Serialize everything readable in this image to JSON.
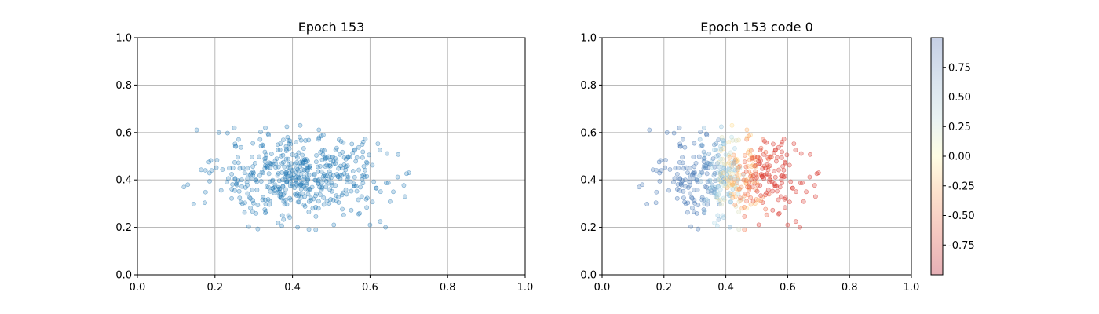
{
  "chart_data": [
    {
      "type": "scatter",
      "title": "Epoch 153",
      "xlabel": "",
      "ylabel": "",
      "xlim": [
        0,
        1
      ],
      "ylim": [
        0,
        1
      ],
      "xticks": [
        "0.0",
        "0.2",
        "0.4",
        "0.6",
        "0.8",
        "1.0"
      ],
      "yticks": [
        "0.0",
        "0.2",
        "0.4",
        "0.6",
        "0.8",
        "1.0"
      ],
      "grid": true,
      "point_color": "#1f77b4",
      "point_alpha": 0.25,
      "num_points": 500,
      "distribution": {
        "x_mean": 0.42,
        "x_std": 0.11,
        "x_range": [
          0.12,
          0.7
        ],
        "y_mean": 0.41,
        "y_std": 0.085,
        "y_range": [
          0.19,
          0.63
        ]
      },
      "sample_points": [
        [
          0.12,
          0.37
        ],
        [
          0.13,
          0.38
        ],
        [
          0.21,
          0.6
        ],
        [
          0.25,
          0.62
        ],
        [
          0.33,
          0.62
        ],
        [
          0.42,
          0.63
        ],
        [
          0.46,
          0.19
        ],
        [
          0.52,
          0.57
        ],
        [
          0.6,
          0.21
        ],
        [
          0.64,
          0.2
        ],
        [
          0.66,
          0.35
        ],
        [
          0.7,
          0.43
        ],
        [
          0.69,
          0.33
        ],
        [
          0.38,
          0.4
        ],
        [
          0.44,
          0.45
        ]
      ]
    },
    {
      "type": "scatter",
      "title": "Epoch 153 code 0",
      "xlabel": "",
      "ylabel": "",
      "xlim": [
        0,
        1
      ],
      "ylim": [
        0,
        1
      ],
      "xticks": [
        "0.0",
        "0.2",
        "0.4",
        "0.6",
        "0.8",
        "1.0"
      ],
      "yticks": [
        "0.0",
        "0.2",
        "0.4",
        "0.6",
        "0.8",
        "1.0"
      ],
      "grid": true,
      "colormap": "RdYlBu",
      "point_alpha": 0.25,
      "colorbar": {
        "range": [
          -1,
          1
        ],
        "ticks": [
          "-0.75",
          "-0.50",
          "-0.25",
          "0.00",
          "0.25",
          "0.50",
          "0.75"
        ],
        "tick_values": [
          -0.75,
          -0.5,
          -0.25,
          0,
          0.25,
          0.5,
          0.75
        ],
        "colors": [
          "#e7b1b6",
          "#f9d6c7",
          "#fcefd6",
          "#fefee2",
          "#eef4f2",
          "#dbe5ef",
          "#c8d1e7"
        ]
      },
      "color_trend": "points on left (x<0.4) colored blue (~+0.75), points on right (x>0.45) colored red (~-0.75), middle near yellow (~0)"
    }
  ]
}
